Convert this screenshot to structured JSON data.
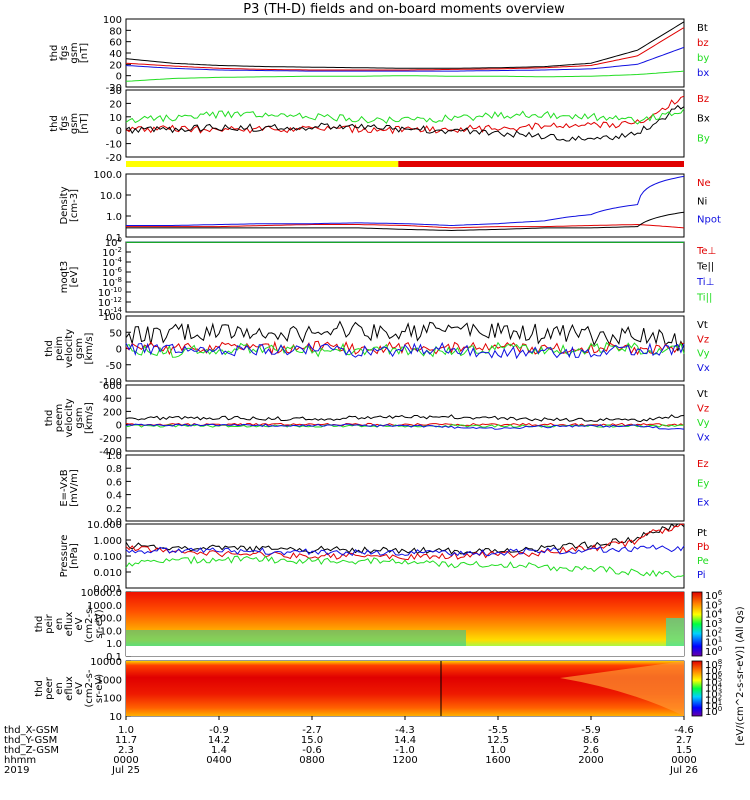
{
  "title": "P3 (TH-D) fields and on-board moments overview",
  "colors": {
    "black": "#000000",
    "red": "#e00000",
    "green": "#22dd22",
    "blue": "#1010e0",
    "yellow": "#ffff00"
  },
  "chart_data": [
    {
      "type": "line",
      "name": "fgs-gsm-tot",
      "ylabel": [
        "thd",
        "fgs",
        "gsm",
        "[nT]"
      ],
      "ylim": [
        -20,
        100
      ],
      "ticks": [
        "100",
        "80",
        "60",
        "40",
        "20",
        "0",
        "-20"
      ],
      "series": [
        {
          "name": "Bt",
          "color": "black",
          "values": [
            30,
            22,
            18,
            16,
            15,
            14,
            13,
            13,
            14,
            16,
            22,
            45,
            95
          ]
        },
        {
          "name": "bz",
          "color": "red",
          "values": [
            22,
            17,
            13,
            11,
            10,
            10,
            10,
            11,
            12,
            14,
            18,
            35,
            85
          ]
        },
        {
          "name": "by",
          "color": "green",
          "values": [
            -10,
            -5,
            -3,
            -2,
            -1,
            -1,
            0,
            -1,
            -1,
            -2,
            -1,
            2,
            8
          ]
        },
        {
          "name": "bx",
          "color": "blue",
          "values": [
            18,
            13,
            10,
            9,
            8,
            8,
            8,
            8,
            9,
            10,
            12,
            20,
            50
          ]
        }
      ]
    },
    {
      "type": "line",
      "name": "fgs-gsm-comp",
      "ylabel": [
        "thd",
        "fgs",
        "gsm",
        "[nT]"
      ],
      "ylim": [
        -25,
        30
      ],
      "ticks": [
        "30",
        "20",
        "10",
        "0",
        "-10",
        "-20"
      ],
      "series": [
        {
          "name": "Bz",
          "color": "red",
          "values": [
            -2,
            -2,
            -3,
            -2,
            -2,
            -2,
            -3,
            -2,
            -1,
            0,
            1,
            3,
            25
          ]
        },
        {
          "name": "Bx",
          "color": "black",
          "values": [
            -3,
            -2,
            -1,
            -1,
            0,
            -1,
            -2,
            -3,
            -5,
            -8,
            -12,
            -5,
            18
          ]
        },
        {
          "name": "By",
          "color": "green",
          "values": [
            5,
            7,
            10,
            9,
            8,
            6,
            5,
            7,
            9,
            10,
            8,
            5,
            14
          ]
        }
      ]
    },
    {
      "type": "line",
      "name": "density",
      "ylabel": [
        "Density",
        "[cm-3]"
      ],
      "log": true,
      "ylim": [
        0.1,
        200
      ],
      "ticks": [
        "100.0",
        "10.0",
        "1.0",
        "0.1"
      ],
      "series": [
        {
          "name": "Ne",
          "color": "red",
          "values": [
            0.35,
            0.35,
            0.35,
            0.4,
            0.45,
            0.45,
            0.4,
            0.3,
            0.35,
            0.35,
            0.4,
            0.45,
            0.3
          ]
        },
        {
          "name": "Ni",
          "color": "black",
          "values": [
            0.3,
            0.3,
            0.3,
            0.3,
            0.3,
            0.3,
            0.25,
            0.22,
            0.25,
            0.3,
            0.3,
            0.35,
            2.0
          ]
        },
        {
          "name": "Npot",
          "color": "blue",
          "values": [
            0.4,
            0.4,
            0.45,
            0.5,
            0.5,
            0.55,
            0.5,
            0.4,
            0.5,
            0.7,
            1.5,
            5,
            150
          ]
        }
      ]
    },
    {
      "type": "line",
      "name": "temperature",
      "ylabel": [
        "moqt3",
        "[eV]"
      ],
      "log": true,
      "ylim": [
        1e-14,
        1
      ],
      "ticks": [
        "10^0",
        "10^-2",
        "10^-4",
        "10^-6",
        "10^-8",
        "10^-10",
        "10^-12",
        "10^-14"
      ],
      "series": [
        {
          "name": "Te⊥",
          "color": "red",
          "values": [
            0.9,
            0.9,
            0.9,
            0.9,
            0.9,
            0.9,
            0.9,
            0.9,
            0.9,
            0.9,
            0.9,
            0.9,
            0.9
          ]
        },
        {
          "name": "Te||",
          "color": "black",
          "values": [
            0.8,
            0.8,
            0.8,
            0.8,
            0.8,
            0.8,
            0.8,
            0.8,
            0.8,
            0.8,
            0.8,
            0.8,
            0.8
          ]
        },
        {
          "name": "Ti⊥",
          "color": "blue",
          "values": [
            0.95,
            0.95,
            0.95,
            0.95,
            0.95,
            0.95,
            0.95,
            0.95,
            0.95,
            0.95,
            0.95,
            0.95,
            0.95
          ]
        },
        {
          "name": "Ti||",
          "color": "green",
          "values": [
            0.92,
            0.92,
            0.92,
            0.92,
            0.92,
            0.92,
            0.92,
            0.92,
            0.92,
            0.92,
            0.92,
            0.92,
            0.92
          ]
        }
      ]
    },
    {
      "type": "line",
      "name": "peim-velocity",
      "ylabel": [
        "thd",
        "peim",
        "velocity",
        "gsm",
        "[km/s]"
      ],
      "ylim": [
        -100,
        100
      ],
      "ticks": [
        "100",
        "50",
        "0",
        "-50",
        "-100"
      ],
      "series": [
        {
          "name": "Vt",
          "color": "black",
          "values": [
            40,
            45,
            50,
            45,
            50,
            55,
            50,
            60,
            50,
            45,
            40,
            35,
            20
          ]
        },
        {
          "name": "Vz",
          "color": "red",
          "values": [
            5,
            0,
            5,
            0,
            5,
            0,
            5,
            0,
            5,
            0,
            0,
            0,
            0
          ]
        },
        {
          "name": "Vy",
          "color": "green",
          "values": [
            -5,
            -10,
            0,
            -5,
            -10,
            0,
            -5,
            -10,
            0,
            -5,
            0,
            0,
            0
          ]
        },
        {
          "name": "Vx",
          "color": "blue",
          "values": [
            0,
            -5,
            -10,
            -5,
            0,
            -10,
            -5,
            0,
            -15,
            -10,
            -10,
            -5,
            0
          ]
        }
      ]
    },
    {
      "type": "line",
      "name": "peem-velocity",
      "ylabel": [
        "thd",
        "peem",
        "velocity",
        "gsm",
        "[km/s]"
      ],
      "ylim": [
        -400,
        600
      ],
      "ticks": [
        "600",
        "400",
        "200",
        "0",
        "-200",
        "-400"
      ],
      "series": [
        {
          "name": "Vt",
          "color": "black",
          "values": [
            100,
            100,
            100,
            90,
            90,
            100,
            110,
            120,
            100,
            80,
            70,
            60,
            150
          ]
        },
        {
          "name": "Vz",
          "color": "red",
          "values": [
            0,
            0,
            0,
            0,
            0,
            0,
            0,
            0,
            0,
            0,
            0,
            0,
            0
          ]
        },
        {
          "name": "Vy",
          "color": "green",
          "values": [
            -20,
            -20,
            -20,
            -20,
            -20,
            -20,
            -20,
            -20,
            -20,
            -20,
            -20,
            -20,
            -20
          ]
        },
        {
          "name": "Vx",
          "color": "blue",
          "values": [
            -10,
            -10,
            -10,
            -10,
            -10,
            -10,
            -20,
            -40,
            -60,
            -30,
            -20,
            -20,
            -80
          ]
        }
      ]
    },
    {
      "type": "line",
      "name": "efield",
      "ylabel": [
        "E=-VxB",
        "[mV/m]"
      ],
      "ylim": [
        0,
        1
      ],
      "ticks": [
        "1.0",
        "0.8",
        "0.6",
        "0.4",
        "0.2",
        "0.0"
      ],
      "series": [
        {
          "name": "Ez",
          "color": "red",
          "values": []
        },
        {
          "name": "Ey",
          "color": "green",
          "values": []
        },
        {
          "name": "Ex",
          "color": "blue",
          "values": []
        }
      ]
    },
    {
      "type": "line",
      "name": "pressure",
      "ylabel": [
        "Pressure",
        "[nPa]"
      ],
      "log": true,
      "ylim": [
        0.001,
        10
      ],
      "ticks": [
        "10.000",
        "1.000",
        "0.100",
        "0.010",
        "0.001"
      ],
      "series": [
        {
          "name": "Pt",
          "color": "black",
          "values": [
            0.45,
            0.35,
            0.3,
            0.28,
            0.25,
            0.25,
            0.22,
            0.2,
            0.22,
            0.3,
            0.5,
            1.0,
            8.0
          ]
        },
        {
          "name": "Pb",
          "color": "red",
          "values": [
            0.3,
            0.2,
            0.15,
            0.12,
            0.1,
            0.1,
            0.08,
            0.1,
            0.12,
            0.15,
            0.3,
            0.7,
            7.0
          ]
        },
        {
          "name": "Pe",
          "color": "green",
          "values": [
            0.03,
            0.05,
            0.06,
            0.06,
            0.05,
            0.05,
            0.04,
            0.03,
            0.03,
            0.02,
            0.015,
            0.01,
            0.005
          ]
        },
        {
          "name": "Pi",
          "color": "blue",
          "values": [
            0.25,
            0.2,
            0.2,
            0.2,
            0.18,
            0.17,
            0.15,
            0.15,
            0.17,
            0.2,
            0.25,
            0.3,
            0.3
          ]
        }
      ]
    },
    {
      "type": "heatmap",
      "name": "peir-eflux",
      "ylabel": [
        "thd",
        "peir",
        "en",
        "eflux",
        "eV",
        "(cm2-s-",
        "sr-eV)"
      ],
      "ticks": [
        "10000.0",
        "1000.0",
        "100.0",
        "10.0",
        "1.0",
        "0.1"
      ]
    },
    {
      "type": "heatmap",
      "name": "peer-eflux",
      "ylabel": [
        "thd",
        "peer",
        "en",
        "eflux",
        "eV",
        "(cm2-s-",
        "sr-eV)"
      ],
      "ticks": [
        "10000",
        "1000",
        "100",
        "10"
      ]
    }
  ],
  "colorbar": {
    "label": "[eV/(cm^2-s-sr-eV)] (All Qs)",
    "ticks_upper": [
      "10^6",
      "10^5",
      "10^4",
      "10^3",
      "10^2",
      "10^1",
      "10^0"
    ],
    "ticks_lower": [
      "10^8",
      "10^7",
      "10^6",
      "10^5",
      "10^4",
      "10^3",
      "10^2",
      "10^1",
      "10^0"
    ]
  },
  "status_bar": {
    "segments": [
      {
        "color": "yellow",
        "frac": 0.488
      },
      {
        "color": "red",
        "frac": 0.512
      }
    ]
  },
  "xaxis": {
    "labels": [
      "thd_X-GSM",
      "thd_Y-GSM",
      "thd_Z-GSM",
      "hhmm",
      "2019"
    ],
    "columns": [
      {
        "x": "1.0",
        "y": "11.7",
        "z": "2.3",
        "hhmm": "0000",
        "date": "Jul 25"
      },
      {
        "x": "-0.9",
        "y": "14.2",
        "z": "1.4",
        "hhmm": "0400",
        "date": ""
      },
      {
        "x": "-2.7",
        "y": "15.0",
        "z": "-0.6",
        "hhmm": "0800",
        "date": ""
      },
      {
        "x": "-4.3",
        "y": "14.4",
        "z": "-1.0",
        "hhmm": "1200",
        "date": ""
      },
      {
        "x": "-5.5",
        "y": "12.5",
        "z": "1.0",
        "hhmm": "1600",
        "date": ""
      },
      {
        "x": "-5.9",
        "y": "8.6",
        "z": "2.6",
        "hhmm": "2000",
        "date": ""
      },
      {
        "x": "-4.6",
        "y": "2.7",
        "z": "1.5",
        "hhmm": "0000",
        "date": "Jul 26"
      }
    ]
  }
}
